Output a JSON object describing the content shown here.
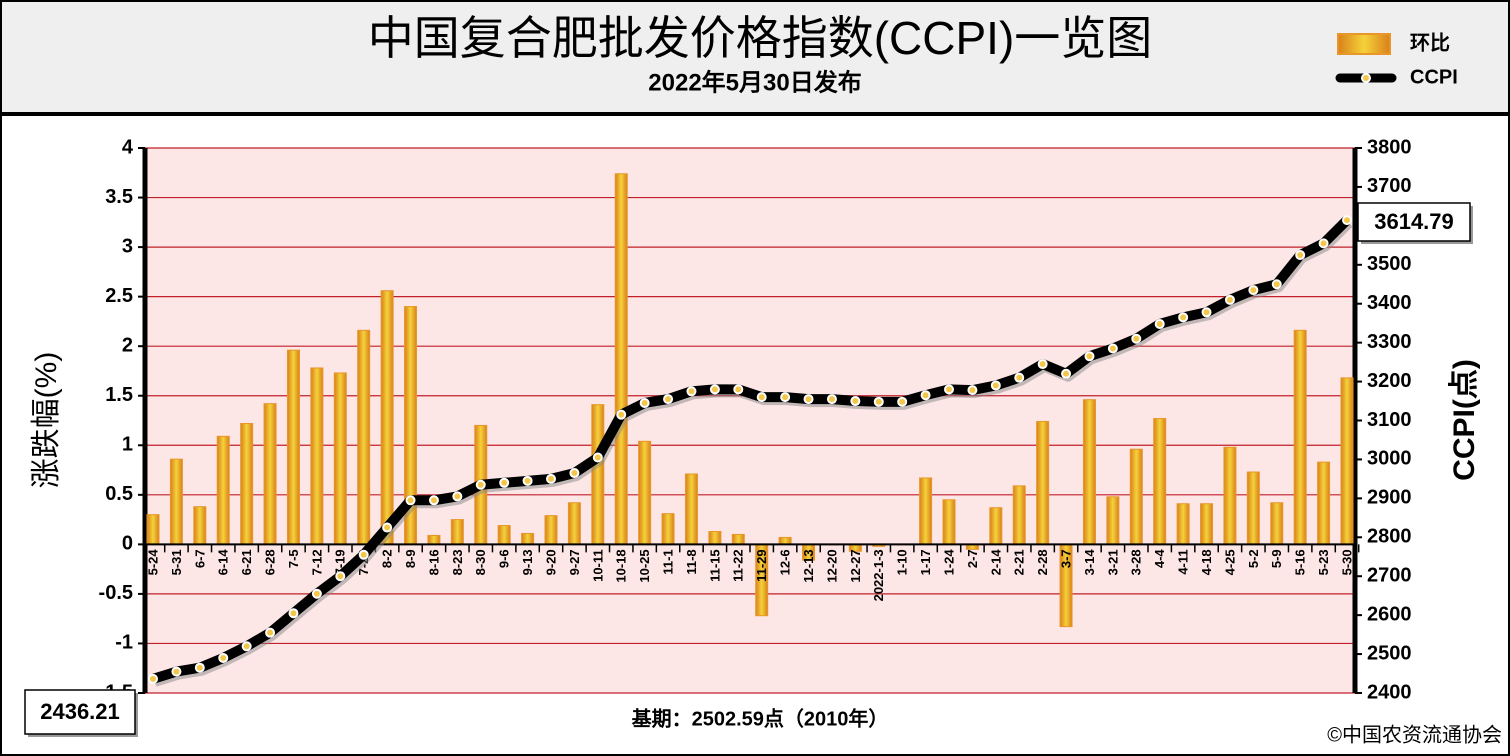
{
  "chart_data": {
    "type": "combo",
    "title": "中国复合肥批发价格指数(CCPI)一览图",
    "subtitle": "2022年5月30日发布",
    "y_label": "涨跌幅(%)",
    "y2_label": "CCPI(点)",
    "note": "基期：2502.59点（2010年）",
    "source": "©中国农资流通协会",
    "legend": "upper right",
    "grid": true,
    "categories": [
      "5-24",
      "5-31",
      "6-7",
      "6-14",
      "6-21",
      "6-28",
      "7-5",
      "7-12",
      "7-19",
      "7-26",
      "8-2",
      "8-9",
      "8-16",
      "8-23",
      "8-30",
      "9-6",
      "9-13",
      "9-20",
      "9-27",
      "10-11",
      "10-18",
      "10-25",
      "11-1",
      "11-8",
      "11-15",
      "11-22",
      "11-29",
      "12-6",
      "12-13",
      "12-20",
      "12-27",
      "2022-1-3",
      "1-10",
      "1-17",
      "1-24",
      "2-7",
      "2-14",
      "2-21",
      "2-28",
      "3-7",
      "3-14",
      "3-21",
      "3-28",
      "4-4",
      "4-11",
      "4-18",
      "4-25",
      "5-2",
      "5-9",
      "5-16",
      "5-23",
      "5-30"
    ],
    "series": [
      {
        "name": "环比",
        "type": "bar",
        "color": "#e8962a",
        "values": [
          0.3,
          0.86,
          0.38,
          1.09,
          1.22,
          1.42,
          1.96,
          1.78,
          1.73,
          2.16,
          2.56,
          2.4,
          0.09,
          0.25,
          1.2,
          0.19,
          0.11,
          0.29,
          0.42,
          1.41,
          3.74,
          1.04,
          0.31,
          0.71,
          0.13,
          0.1,
          -0.72,
          0.07,
          -0.16,
          0,
          -0.07,
          -0.02,
          0,
          0.67,
          0.45,
          -0.05,
          0.37,
          0.59,
          1.24,
          -0.83,
          1.46,
          0.48,
          0.96,
          1.27,
          0.41,
          0.41,
          0.98,
          0.73,
          0.42,
          2.16,
          0.83,
          1.68
        ]
      },
      {
        "name": "CCPI",
        "type": "line",
        "axis": "y2",
        "color": "#000000",
        "values": [
          2436.21,
          2455,
          2465,
          2490,
          2520,
          2555,
          2605,
          2655,
          2700,
          2755,
          2825,
          2895,
          2895,
          2905,
          2935,
          2940,
          2945,
          2950,
          2965,
          3005,
          3115,
          3145,
          3155,
          3175,
          3180,
          3180,
          3160,
          3160,
          3155,
          3155,
          3150,
          3148,
          3148,
          3165,
          3180,
          3178,
          3190,
          3210,
          3245,
          3220,
          3265,
          3285,
          3310,
          3348,
          3365,
          3378,
          3410,
          3435,
          3450,
          3525,
          3555,
          3614.79
        ]
      }
    ],
    "ylim": [
      -1.5,
      4
    ],
    "yticks": [
      -1.5,
      -1,
      -0.5,
      0,
      0.5,
      1,
      1.5,
      2,
      2.5,
      3,
      3.5,
      4
    ],
    "y2lim": [
      2400,
      3800
    ],
    "y2ticks": [
      2400,
      2500,
      2600,
      2700,
      2800,
      2900,
      3000,
      3100,
      3200,
      3300,
      3400,
      3500,
      3600,
      3700,
      3800
    ]
  }
}
